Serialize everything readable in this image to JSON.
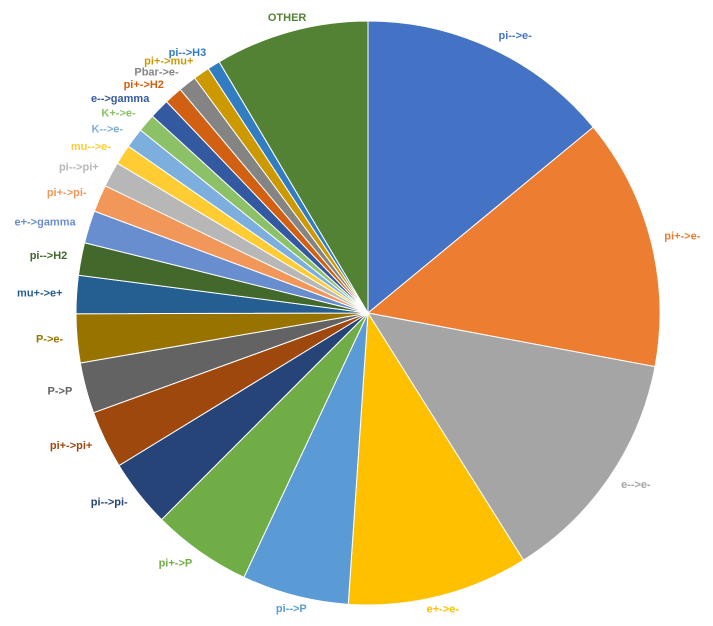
{
  "chart_data": {
    "type": "pie",
    "categories": [
      "pi-->e-",
      "pi+->e-",
      "e-->e-",
      "e+->e-",
      "pi-->P",
      "pi+->P",
      "pi-->pi-",
      "pi+->pi+",
      "P->P",
      "P->e-",
      "mu+->e+",
      "pi-->H2",
      "e+->gamma",
      "pi+->pi-",
      "pi-->pi+",
      "mu-->e-",
      "K-->e-",
      "K+->e-",
      "e-->gamma",
      "pi+->H2",
      "Pbar->e-",
      "pi+->mu+",
      "pi-->H3",
      "OTHER"
    ],
    "values": [
      14.0,
      13.9,
      13.1,
      10.0,
      5.9,
      5.5,
      3.75,
      3.2,
      2.8,
      2.7,
      2.1,
      1.8,
      1.8,
      1.5,
      1.4,
      1.1,
      1.1,
      1.0,
      1.1,
      1.0,
      1.0,
      0.9,
      0.7,
      8.5
    ],
    "colors": [
      "#4472C4",
      "#ED7D31",
      "#A5A5A5",
      "#FFC000",
      "#5B9BD5",
      "#70AD47",
      "#264478",
      "#9E480E",
      "#636363",
      "#997300",
      "#255E91",
      "#43682B",
      "#698ED0",
      "#F1975A",
      "#B7B7B7",
      "#FFCD33",
      "#7CAFDD",
      "#8CC168",
      "#335AA1",
      "#D26012",
      "#848484",
      "#CC9A00",
      "#327DC2",
      "#548235"
    ]
  }
}
